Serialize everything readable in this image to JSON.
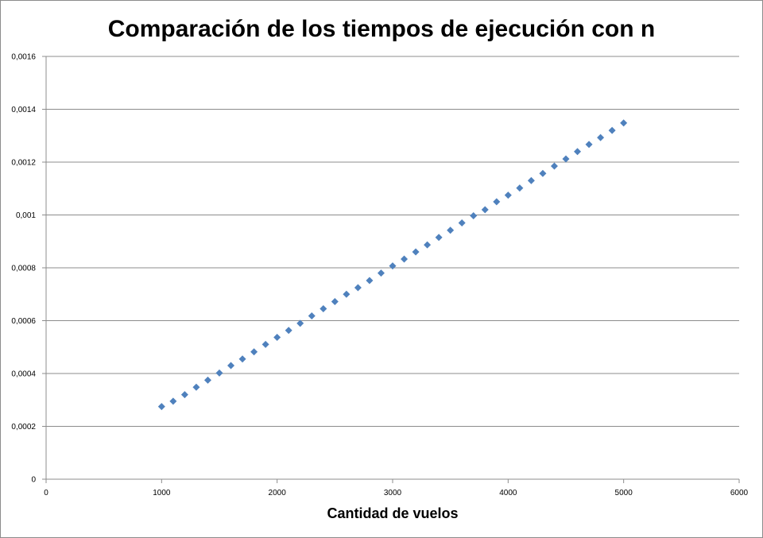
{
  "chart_data": {
    "type": "scatter",
    "title": "Comparación de los tiempos de ejecución con n",
    "xlabel": "Cantidad de vuelos",
    "ylabel": "",
    "xlim": [
      0,
      6000
    ],
    "ylim": [
      0,
      0.0016
    ],
    "x_ticks": [
      "0",
      "1000",
      "2000",
      "3000",
      "4000",
      "5000",
      "6000"
    ],
    "y_ticks": [
      "0",
      "0,0002",
      "0,0004",
      "0,0006",
      "0,0008",
      "0,001",
      "0,0012",
      "0,0014",
      "0,0016"
    ],
    "grid": "horizontal",
    "legend": "none",
    "marker": "diamond",
    "series_color": "#4f81bd",
    "series": [
      {
        "x": [
          1000,
          1100,
          1200,
          1300,
          1400,
          1500,
          1600,
          1700,
          1800,
          1900,
          2000,
          2100,
          2200,
          2300,
          2400,
          2500,
          2600,
          2700,
          2800,
          2900,
          3000,
          3100,
          3200,
          3300,
          3400,
          3500,
          3600,
          3700,
          3800,
          3900,
          4000,
          4100,
          4200,
          4300,
          4400,
          4500,
          4600,
          4700,
          4800,
          4900,
          5000
        ],
        "y": [
          0.000275,
          0.000295,
          0.00032,
          0.000348,
          0.000375,
          0.000402,
          0.00043,
          0.000455,
          0.000482,
          0.00051,
          0.000537,
          0.000563,
          0.00059,
          0.000618,
          0.000645,
          0.000672,
          0.0007,
          0.000725,
          0.000752,
          0.00078,
          0.000807,
          0.000833,
          0.00086,
          0.000887,
          0.000915,
          0.000942,
          0.00097,
          0.000997,
          0.00102,
          0.00105,
          0.001075,
          0.001102,
          0.00113,
          0.001157,
          0.001185,
          0.001212,
          0.00124,
          0.001267,
          0.001293,
          0.00132,
          0.001348
        ]
      }
    ]
  }
}
